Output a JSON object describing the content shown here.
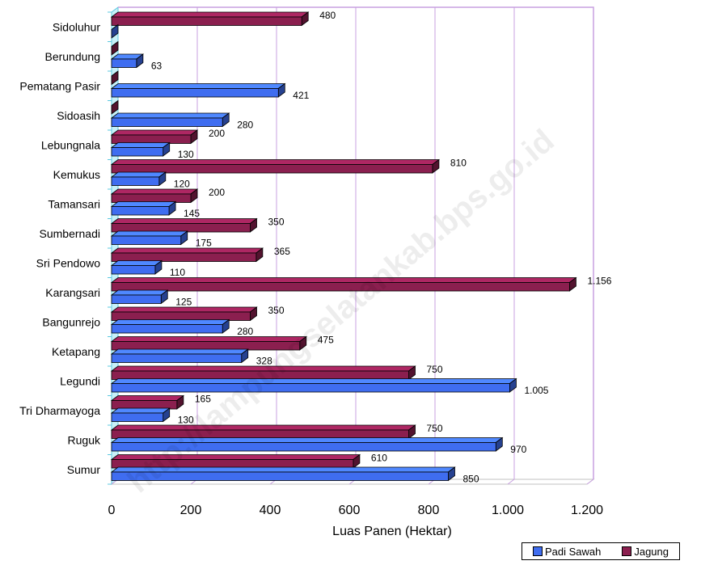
{
  "chart_data": {
    "type": "bar",
    "orientation": "horizontal",
    "categories": [
      "Sidoluhur",
      "Berundung",
      "Pematang Pasir",
      "Sidoasih",
      "Lebungnala",
      "Kemukus",
      "Tamansari",
      "Sumbernadi",
      "Sri Pendowo",
      "Karangsari",
      "Bangunrejo",
      "Ketapang",
      "Legundi",
      "Tri Dharmayoga",
      "Ruguk",
      "Sumur"
    ],
    "series": [
      {
        "name": "Padi Sawah",
        "color": "#3f6df0",
        "values": [
          0,
          63,
          421,
          280,
          130,
          120,
          145,
          175,
          110,
          125,
          280,
          328,
          1005,
          130,
          970,
          850
        ],
        "labels": [
          "",
          "63",
          "421",
          "280",
          "130",
          "120",
          "145",
          "175",
          "110",
          "125",
          "280",
          "328",
          "1.005",
          "130",
          "970",
          "850"
        ]
      },
      {
        "name": "Jagung",
        "color": "#8b1f4f",
        "values": [
          480,
          0,
          0,
          0,
          200,
          810,
          200,
          350,
          365,
          1156,
          350,
          475,
          750,
          165,
          750,
          610
        ],
        "labels": [
          "480",
          "",
          "",
          "",
          "200",
          "810",
          "200",
          "350",
          "365",
          "1.156",
          "350",
          "475",
          "750",
          "165",
          "750",
          "610"
        ]
      }
    ],
    "xlabel": "Luas Panen (Hektar)",
    "ylabel": "",
    "xlim": [
      0,
      1200
    ],
    "xticks": [
      0,
      200,
      400,
      600,
      800,
      1000,
      1200
    ],
    "xtick_labels": [
      "0",
      "200",
      "400",
      "600",
      "800",
      "1.000",
      "1.200"
    ],
    "grid": true,
    "legend_position": "bottom-right",
    "watermark": "http://lampungselatankab.bps.go.id"
  }
}
